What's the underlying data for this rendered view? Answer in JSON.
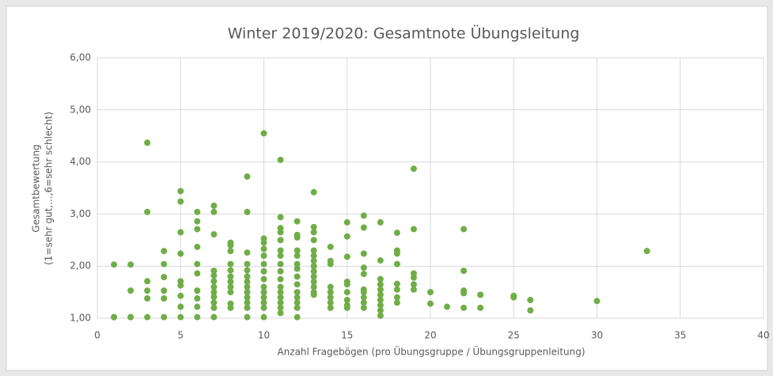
{
  "chart_data": {
    "type": "scatter",
    "title": "Winter 2019/2020: Gesamtnote Übungsleitung",
    "xlabel": "Anzahl Fragebögen (pro Übungsgruppe / Übungsgruppenleitung)",
    "ylabel": [
      "Gesamtbewertung",
      "(1=sehr gut,...,6=sehr schlecht)"
    ],
    "color": "#70ad47",
    "grid": true,
    "xlim": [
      0,
      40
    ],
    "xticks": [
      0,
      5,
      10,
      15,
      20,
      25,
      30,
      35,
      40
    ],
    "ylim": [
      1,
      6
    ],
    "yticks": [
      {
        "value": 1,
        "label": "1,00"
      },
      {
        "value": 2,
        "label": "2,00"
      },
      {
        "value": 3,
        "label": "3,00"
      },
      {
        "value": 4,
        "label": "4,00"
      },
      {
        "value": 5,
        "label": "5,00"
      },
      {
        "value": 6,
        "label": "6,00"
      }
    ],
    "x": [
      1,
      1,
      1,
      2,
      2,
      2,
      2,
      3,
      3,
      3,
      3,
      3,
      3,
      4,
      4,
      4,
      4,
      4,
      4,
      5,
      5,
      5,
      5,
      5,
      5,
      5,
      5,
      5,
      6,
      6,
      6,
      6,
      6,
      6,
      6,
      6,
      6,
      6,
      7,
      7,
      7,
      7,
      7,
      7,
      7,
      7,
      7,
      7,
      7,
      7,
      8,
      8,
      8,
      8,
      8,
      8,
      8,
      8,
      8,
      8,
      8,
      9,
      9,
      9,
      9,
      9,
      9,
      9,
      9,
      9,
      9,
      9,
      9,
      9,
      10,
      10,
      10,
      10,
      10,
      10,
      10,
      10,
      10,
      10,
      10,
      10,
      10,
      10,
      11,
      11,
      11,
      11,
      11,
      11,
      11,
      11,
      11,
      11,
      11,
      11,
      11,
      11,
      11,
      11,
      12,
      12,
      12,
      12,
      12,
      12,
      12,
      12,
      12,
      12,
      12,
      12,
      12,
      12,
      13,
      13,
      13,
      13,
      13,
      13,
      13,
      13,
      13,
      13,
      13,
      13,
      13,
      13,
      14,
      14,
      14,
      14,
      14,
      14,
      14,
      14,
      15,
      15,
      15,
      15,
      15,
      15,
      15,
      15,
      15,
      16,
      16,
      16,
      16,
      16,
      16,
      16,
      16,
      16,
      16,
      17,
      17,
      17,
      17,
      17,
      17,
      17,
      17,
      17,
      17,
      18,
      18,
      18,
      18,
      18,
      18,
      18,
      18,
      19,
      19,
      19,
      19,
      19,
      19,
      20,
      20,
      21,
      22,
      22,
      22,
      22,
      22,
      23,
      23,
      25,
      25,
      26,
      26,
      30,
      33
    ],
    "values": [
      2.03,
      1.02,
      1.02,
      2.03,
      1.53,
      1.02,
      1.02,
      4.37,
      3.04,
      1.71,
      1.53,
      1.38,
      1.02,
      2.29,
      2.04,
      1.79,
      1.53,
      1.38,
      1.02,
      3.44,
      3.24,
      2.65,
      2.24,
      1.71,
      1.63,
      1.43,
      1.22,
      1.02,
      3.04,
      2.86,
      2.71,
      2.37,
      2.04,
      1.86,
      1.53,
      1.38,
      1.22,
      1.02,
      3.16,
      3.04,
      2.61,
      1.91,
      1.82,
      1.71,
      1.6,
      1.5,
      1.41,
      1.3,
      1.2,
      1.02,
      2.45,
      2.4,
      2.29,
      2.04,
      1.92,
      1.8,
      1.7,
      1.6,
      1.5,
      1.28,
      1.2,
      3.72,
      3.04,
      2.26,
      2.04,
      1.92,
      1.8,
      1.7,
      1.6,
      1.5,
      1.4,
      1.3,
      1.2,
      1.02,
      4.55,
      2.53,
      2.45,
      2.33,
      2.2,
      2.04,
      1.9,
      1.75,
      1.6,
      1.5,
      1.4,
      1.3,
      1.2,
      1.02,
      4.04,
      2.94,
      2.73,
      2.65,
      2.5,
      2.3,
      2.2,
      2.04,
      1.9,
      1.75,
      1.6,
      1.5,
      1.4,
      1.3,
      1.2,
      1.1,
      2.86,
      2.6,
      2.55,
      2.3,
      2.2,
      2.04,
      1.95,
      1.8,
      1.65,
      1.5,
      1.4,
      1.3,
      1.2,
      1.02,
      3.42,
      2.75,
      2.65,
      2.5,
      2.3,
      2.2,
      2.1,
      2.0,
      1.9,
      1.8,
      1.7,
      1.6,
      1.5,
      1.45,
      2.37,
      2.1,
      2.04,
      1.6,
      1.5,
      1.4,
      1.3,
      1.2,
      2.84,
      2.57,
      2.18,
      1.7,
      1.65,
      1.5,
      1.35,
      1.25,
      1.2,
      2.97,
      2.74,
      2.24,
      1.97,
      1.85,
      1.55,
      1.5,
      1.4,
      1.3,
      1.2,
      2.84,
      2.11,
      1.75,
      1.65,
      1.55,
      1.45,
      1.35,
      1.25,
      1.15,
      1.05,
      2.64,
      2.3,
      2.24,
      2.04,
      1.66,
      1.55,
      1.4,
      1.3,
      3.87,
      2.71,
      1.86,
      1.78,
      1.65,
      1.55,
      1.5,
      1.28,
      1.22,
      2.71,
      1.91,
      1.53,
      1.48,
      1.2,
      1.45,
      1.2,
      1.43,
      1.4,
      1.35,
      1.15,
      1.33,
      2.29
    ]
  }
}
